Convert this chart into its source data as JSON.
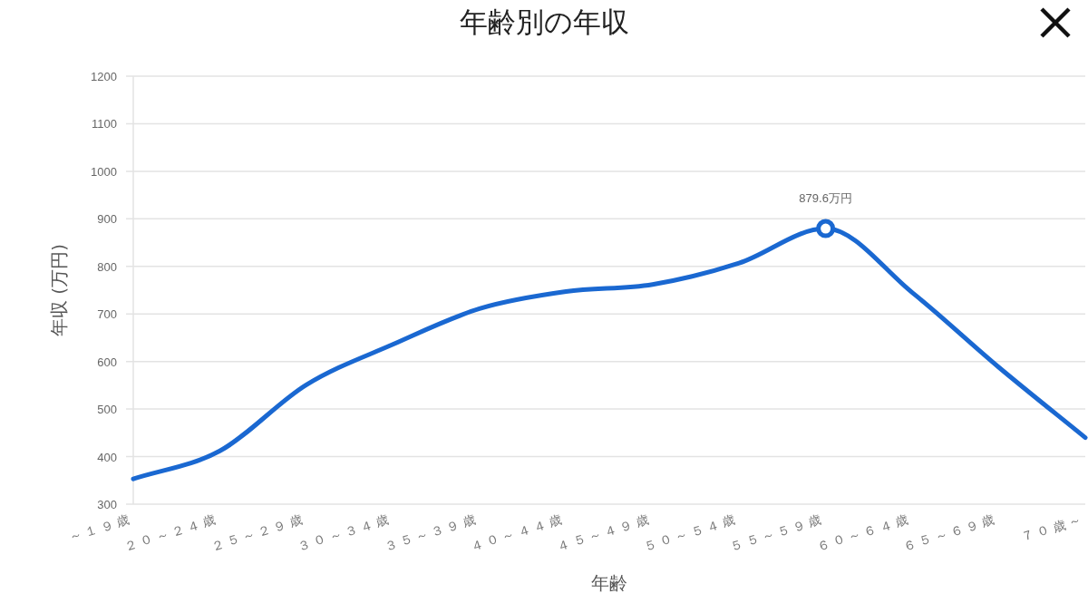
{
  "chart_data": {
    "type": "line",
    "title": "年齢別の年収",
    "xlabel": "年齢",
    "ylabel": "年収 (万円)",
    "categories": [
      "～１９歳",
      "２０～２４歳",
      "２５～２９歳",
      "３０～３４歳",
      "３５～３９歳",
      "４０～４４歳",
      "４５～４９歳",
      "５０～５４歳",
      "５５～５９歳",
      "６０～６４歳",
      "６５～６９歳",
      "７０歳～"
    ],
    "series": [
      {
        "color": "#1a68d1",
        "values": [
          353,
          412,
          551,
          636,
          711,
          747,
          762,
          807,
          879.6,
          745,
          588,
          440
        ],
        "value_labels": [
          null,
          null,
          null,
          null,
          null,
          null,
          null,
          null,
          "879.6万円",
          null,
          null,
          null
        ]
      }
    ],
    "ylim": [
      300,
      1200
    ],
    "yticks": [
      300,
      400,
      500,
      600,
      700,
      800,
      900,
      1000,
      1100,
      1200
    ],
    "grid": "y",
    "marker": "none",
    "line_style": "solid"
  }
}
